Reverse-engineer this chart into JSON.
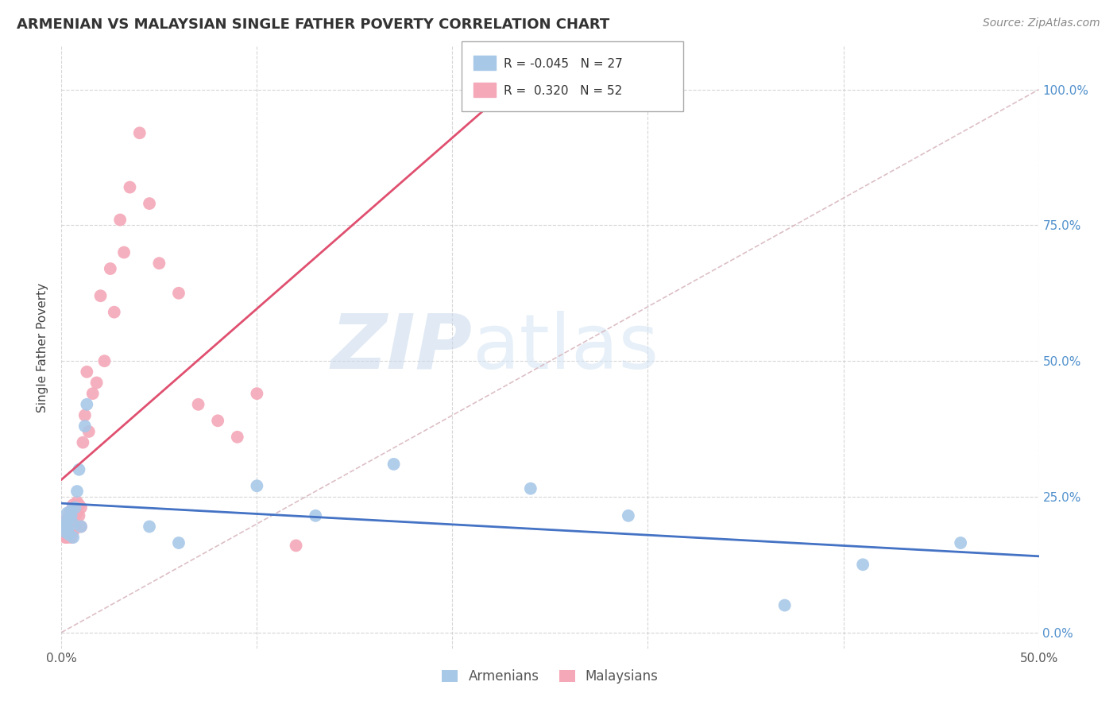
{
  "title": "ARMENIAN VS MALAYSIAN SINGLE FATHER POVERTY CORRELATION CHART",
  "source": "Source: ZipAtlas.com",
  "ylabel": "Single Father Poverty",
  "xlim": [
    0.0,
    0.5
  ],
  "ylim": [
    -0.03,
    1.08
  ],
  "ytick_values": [
    0.0,
    0.25,
    0.5,
    0.75,
    1.0
  ],
  "armenian_color": "#a8c8e8",
  "malaysian_color": "#f4a8b8",
  "armenian_line_color": "#4472c4",
  "malaysian_line_color": "#e05070",
  "diagonal_color": "#d4b0b8",
  "background_color": "#ffffff",
  "grid_color": "#cccccc",
  "armenians_x": [
    0.001,
    0.002,
    0.002,
    0.003,
    0.003,
    0.004,
    0.004,
    0.005,
    0.005,
    0.006,
    0.006,
    0.007,
    0.008,
    0.009,
    0.01,
    0.012,
    0.013,
    0.045,
    0.06,
    0.1,
    0.13,
    0.17,
    0.24,
    0.29,
    0.37,
    0.41,
    0.46
  ],
  "armenians_y": [
    0.195,
    0.205,
    0.185,
    0.22,
    0.19,
    0.21,
    0.18,
    0.215,
    0.225,
    0.2,
    0.175,
    0.23,
    0.26,
    0.3,
    0.195,
    0.38,
    0.42,
    0.195,
    0.165,
    0.27,
    0.215,
    0.31,
    0.265,
    0.215,
    0.05,
    0.125,
    0.165
  ],
  "malaysians_x": [
    0.001,
    0.001,
    0.002,
    0.002,
    0.002,
    0.003,
    0.003,
    0.003,
    0.003,
    0.004,
    0.004,
    0.004,
    0.004,
    0.005,
    0.005,
    0.005,
    0.005,
    0.006,
    0.006,
    0.006,
    0.006,
    0.007,
    0.007,
    0.007,
    0.008,
    0.008,
    0.009,
    0.009,
    0.01,
    0.01,
    0.011,
    0.012,
    0.013,
    0.014,
    0.016,
    0.018,
    0.02,
    0.022,
    0.025,
    0.027,
    0.03,
    0.032,
    0.035,
    0.04,
    0.045,
    0.05,
    0.06,
    0.07,
    0.08,
    0.09,
    0.1,
    0.12
  ],
  "malaysians_y": [
    0.195,
    0.185,
    0.205,
    0.175,
    0.19,
    0.2,
    0.185,
    0.175,
    0.21,
    0.195,
    0.22,
    0.185,
    0.2,
    0.215,
    0.185,
    0.195,
    0.175,
    0.235,
    0.22,
    0.2,
    0.185,
    0.23,
    0.215,
    0.195,
    0.24,
    0.22,
    0.235,
    0.215,
    0.23,
    0.195,
    0.35,
    0.4,
    0.48,
    0.37,
    0.44,
    0.46,
    0.62,
    0.5,
    0.67,
    0.59,
    0.76,
    0.7,
    0.82,
    0.92,
    0.79,
    0.68,
    0.625,
    0.42,
    0.39,
    0.36,
    0.44,
    0.16
  ],
  "watermark_zip": "ZIP",
  "watermark_atlas": "atlas",
  "watermark_color": "#d4e4f4"
}
